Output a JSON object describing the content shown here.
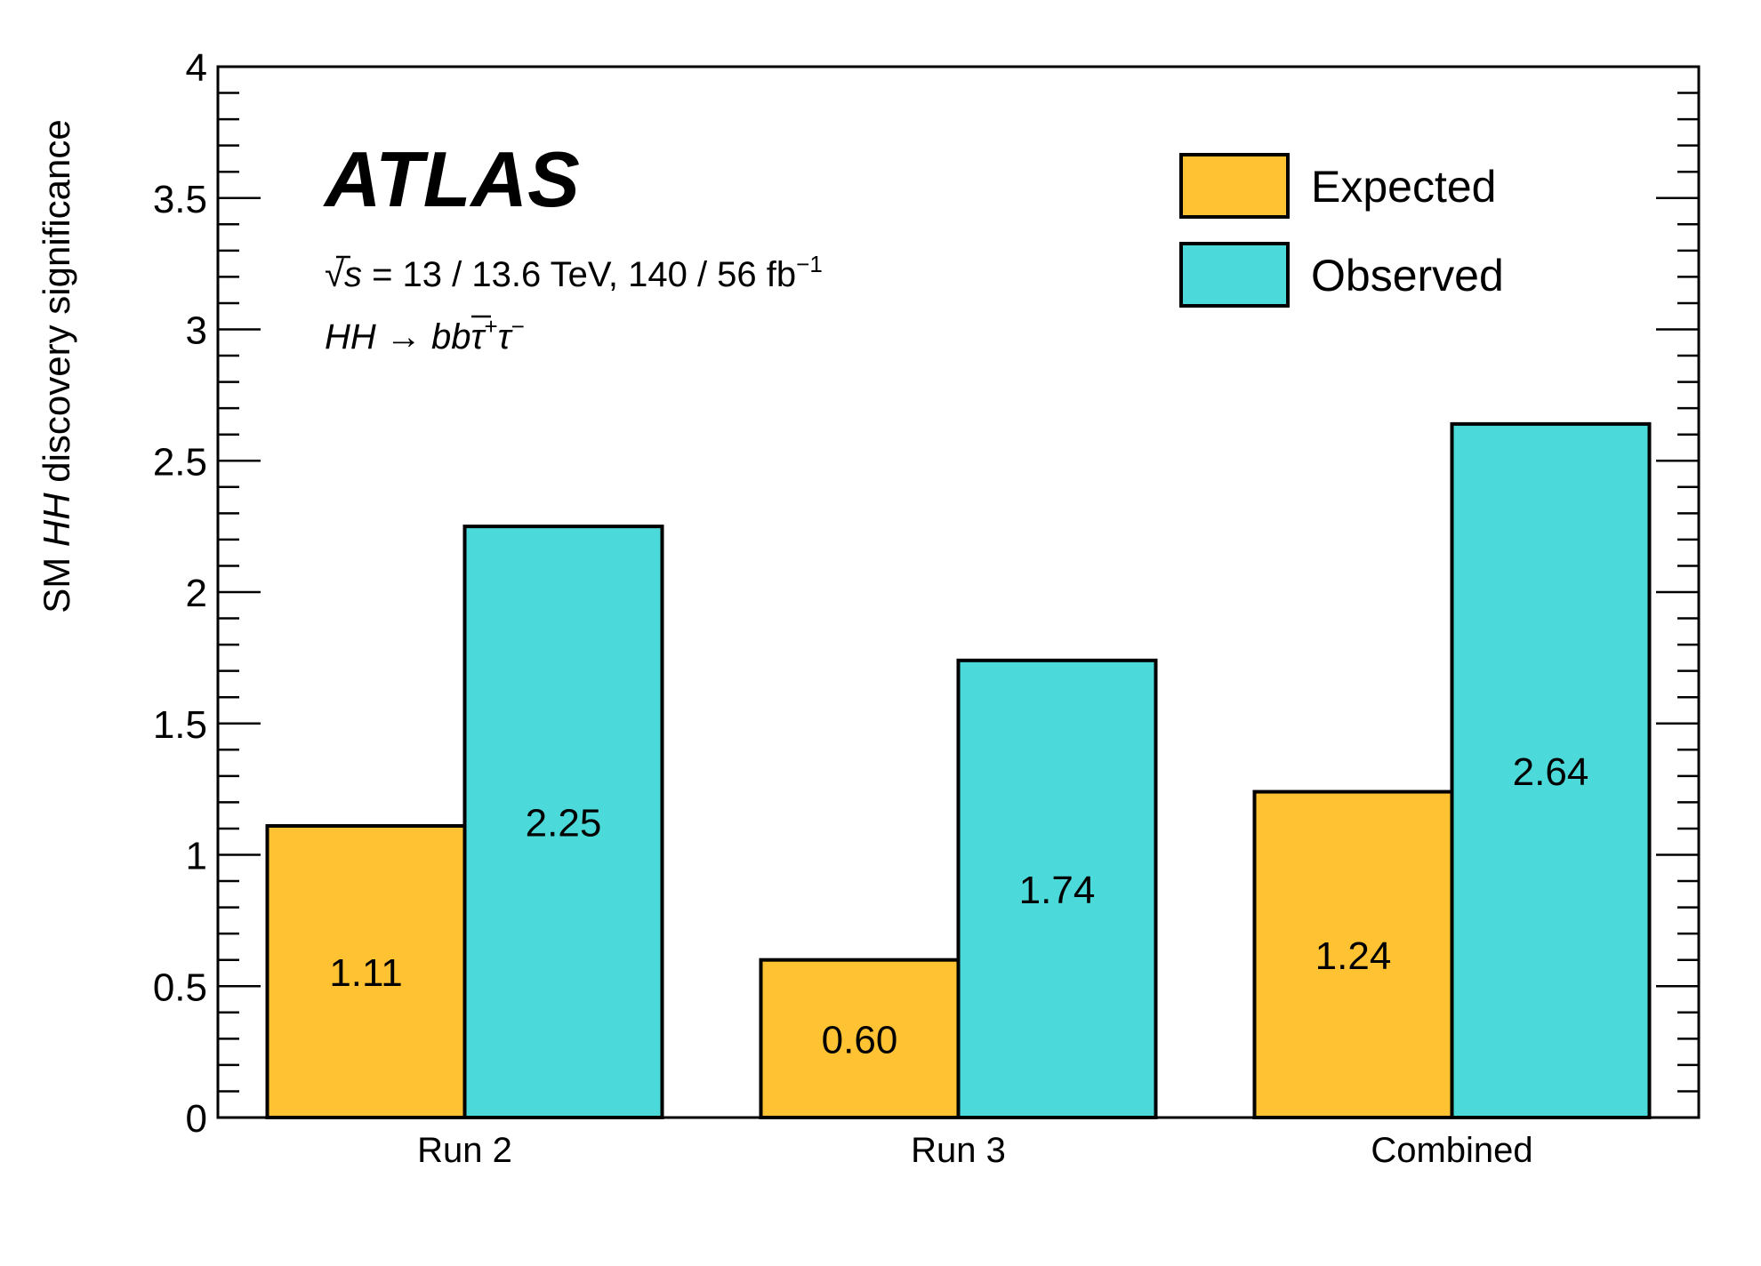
{
  "chart_data": {
    "type": "bar",
    "categories": [
      "Run 2",
      "Run 3",
      "Combined"
    ],
    "series": [
      {
        "name": "Expected",
        "values": [
          1.11,
          0.6,
          1.24
        ],
        "labels": [
          "1.11",
          "0.60",
          "1.24"
        ],
        "color": "#fec232"
      },
      {
        "name": "Observed",
        "values": [
          2.25,
          1.74,
          2.64
        ],
        "labels": [
          "2.25",
          "1.74",
          "2.64"
        ],
        "color": "#4bd9d9"
      }
    ],
    "ylabel_parts": [
      "SM ",
      "HH",
      " discovery significance"
    ],
    "ylim": [
      0,
      4
    ],
    "yticks": [
      0,
      0.5,
      1,
      1.5,
      2,
      2.5,
      3,
      3.5,
      4
    ],
    "ytick_labels": [
      "0",
      "0.5",
      "1",
      "1.5",
      "2",
      "2.5",
      "3",
      "3.5",
      "4"
    ],
    "legend_position": "top-right",
    "experiment_label": "ATLAS",
    "energy_text": {
      "root": "√",
      "s": "s",
      "rest": " = 13 / 13.6 TeV, 140 / 56 fb",
      "sup": "−1"
    },
    "process_text": {
      "hh": "HH",
      "arrow": " → ",
      "b": "b",
      "bbar": "b",
      "tau1": "τ",
      "sup1": "+",
      "tau2": "τ",
      "sup2": "−"
    }
  }
}
